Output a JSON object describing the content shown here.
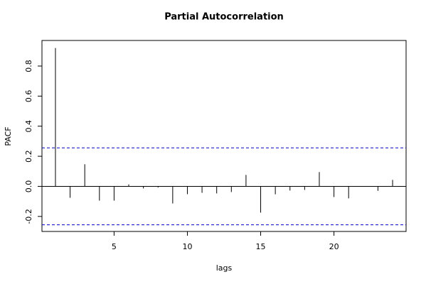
{
  "chart_data": {
    "type": "pacf",
    "title": "Partial Autocorrelation",
    "x_label": "lags",
    "y_label": "PACF",
    "x": [
      1,
      2,
      3,
      4,
      5,
      6,
      7,
      8,
      9,
      10,
      11,
      12,
      13,
      14,
      15,
      16,
      17,
      18,
      19,
      20,
      21,
      22,
      23,
      24
    ],
    "values": [
      0.92,
      -0.076,
      0.147,
      -0.095,
      -0.095,
      0.013,
      -0.014,
      -0.008,
      -0.114,
      -0.052,
      -0.043,
      -0.047,
      -0.038,
      0.076,
      -0.175,
      -0.053,
      -0.028,
      -0.024,
      0.095,
      -0.071,
      -0.08,
      0.002,
      -0.03,
      0.043
    ],
    "color": "#000000",
    "confidence_bounds": [
      0.256,
      -0.256
    ],
    "confidence_color": "#0000cc",
    "xlim": [
      0.08,
      24.92
    ],
    "ylim": [
      -0.3,
      0.97
    ],
    "xticks": [
      5,
      10,
      15,
      20
    ],
    "yticks": [
      -0.2,
      {
        "value": 0,
        "label": "0.0"
      },
      0.2,
      0.4,
      0.6,
      0.8
    ]
  }
}
